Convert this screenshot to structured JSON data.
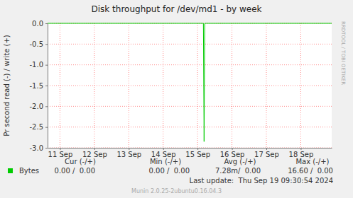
{
  "chart_data": {
    "type": "line",
    "title": "Disk throughput for /dev/md1 - by week",
    "y_label": "Pr second read (-) / write (+)",
    "watermark": "RRDTOOL / TOBI OETIKER",
    "x": [
      11.14,
      15.67,
      15.69,
      15.71,
      19.4
    ],
    "series": [
      {
        "name": "Bytes",
        "color": "#00cc00",
        "values": [
          0,
          0,
          -2.85,
          0,
          0
        ]
      }
    ],
    "xlim": [
      11.14,
      19.4
    ],
    "xticks": [
      {
        "value": 11.5,
        "label": "11 Sep"
      },
      {
        "value": 12.5,
        "label": "12 Sep"
      },
      {
        "value": 13.5,
        "label": "13 Sep"
      },
      {
        "value": 14.5,
        "label": "14 Sep"
      },
      {
        "value": 15.5,
        "label": "15 Sep"
      },
      {
        "value": 16.5,
        "label": "16 Sep"
      },
      {
        "value": 17.5,
        "label": "17 Sep"
      },
      {
        "value": 18.5,
        "label": "18 Sep"
      }
    ],
    "ylim": [
      -3,
      0
    ],
    "yticks": [
      {
        "value": -3,
        "label": "-3.0"
      },
      -2.5,
      {
        "value": -2,
        "label": "-2.0"
      },
      -1.5,
      {
        "value": -1,
        "label": "-1.0"
      },
      -0.5,
      {
        "value": 0,
        "label": "0.0"
      }
    ],
    "grid": true,
    "legend": "bottom-left",
    "stats": {
      "headers": [
        "Cur (-/+)",
        "Min (-/+)",
        "Avg (-/+)",
        "Max (-/+)"
      ],
      "values": [
        "0.00 /  0.00",
        "0.00 /  0.00",
        "7.28m/  0.00",
        "16.60 /  0.00"
      ]
    },
    "last_update": "Last update:  Thu Sep 19 09:30:54 2024",
    "footer": "Munin 2.0.25-2ubuntu0.16.04.3"
  }
}
